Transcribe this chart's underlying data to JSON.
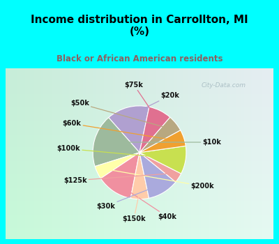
{
  "title": "Income distribution in Carrollton, MI\n(%)",
  "subtitle": "Black or African American residents",
  "title_color": "#000000",
  "subtitle_color": "#8B6060",
  "bg_outer": "#00FFFF",
  "bg_chart": "#d0ede0",
  "slice_labels": [
    "$20k",
    "$10k",
    "$200k",
    "$40k",
    "$150k",
    "$30k",
    "$125k",
    "$100k",
    "$60k",
    "$50k",
    "$75k"
  ],
  "values": [
    13.0,
    16.0,
    4.0,
    11.0,
    5.5,
    9.5,
    3.0,
    8.5,
    5.0,
    5.0,
    7.0
  ],
  "colors": [
    "#b0a0d0",
    "#9dba9d",
    "#ffffaa",
    "#f090a0",
    "#ffccaa",
    "#aaaadd",
    "#f0a0a0",
    "#c8e050",
    "#f0a030",
    "#b8a880",
    "#e07090"
  ],
  "watermark": "City-Data.com",
  "title_fontsize": 11,
  "subtitle_fontsize": 8.5
}
